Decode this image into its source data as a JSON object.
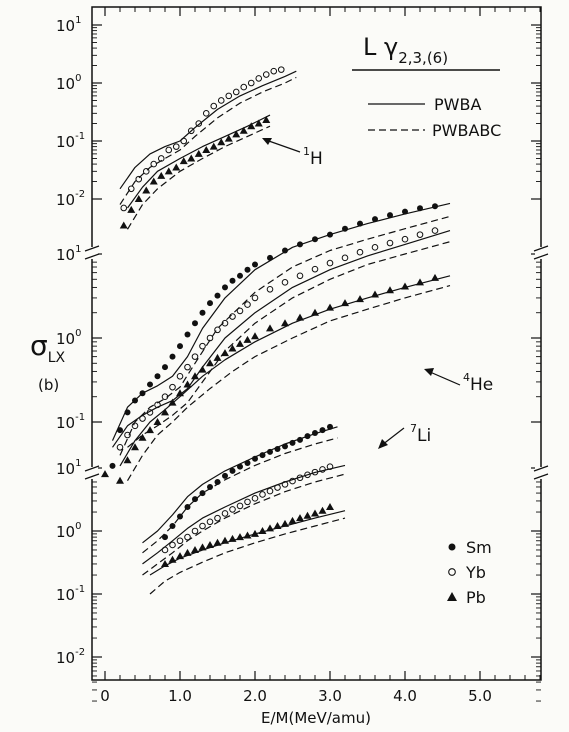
{
  "chart_data": {
    "type": "line",
    "xlabel": "E/M(MeV/amu)",
    "ylabel": "σ_LX",
    "ylabel_main": "σ",
    "ylabel_sub": "LX",
    "yunit": "(b)",
    "xlim": [
      0,
      6
    ],
    "x_ticks": [
      "0",
      "1.0",
      "2.0",
      "3.0",
      "4.0",
      "5.0"
    ],
    "yscale": "log",
    "title_main": "L γ",
    "title_sub": "2,3,(6)",
    "legend": {
      "line_solid": "PWBA",
      "line_dashed": "PWBABC",
      "markers": [
        {
          "symbol": "filled-circle",
          "label": "Sm"
        },
        {
          "symbol": "open-circle",
          "label": "Yb"
        },
        {
          "symbol": "filled-triangle",
          "label": "Pb"
        }
      ]
    },
    "panels": [
      {
        "name": "1H",
        "label": "1",
        "label_tail": "H",
        "y_ticks": [
          "10",
          "10",
          "10",
          "10"
        ],
        "y_exps": [
          "1",
          "0",
          "-1",
          "-2"
        ],
        "ylim_log": [
          -2.5,
          1
        ],
        "series": [
          {
            "marker": "open-circle",
            "x": [
              0.25,
              0.35,
              0.45,
              0.55,
              0.65,
              0.75,
              0.85,
              0.95,
              1.05,
              1.15,
              1.25,
              1.35,
              1.45,
              1.55,
              1.65,
              1.75,
              1.85,
              1.95,
              2.05,
              2.15,
              2.25,
              2.35
            ],
            "y": [
              0.007,
              0.015,
              0.022,
              0.03,
              0.04,
              0.05,
              0.07,
              0.08,
              0.1,
              0.15,
              0.2,
              0.3,
              0.4,
              0.5,
              0.6,
              0.7,
              0.85,
              1.0,
              1.2,
              1.4,
              1.6,
              1.7
            ]
          },
          {
            "marker": "filled-triangle",
            "x": [
              0.25,
              0.35,
              0.45,
              0.55,
              0.65,
              0.75,
              0.85,
              0.95,
              1.05,
              1.15,
              1.25,
              1.35,
              1.45,
              1.55,
              1.65,
              1.75,
              1.85,
              1.95,
              2.05,
              2.15
            ],
            "y": [
              0.0035,
              0.0065,
              0.01,
              0.014,
              0.02,
              0.025,
              0.03,
              0.035,
              0.045,
              0.05,
              0.06,
              0.07,
              0.08,
              0.095,
              0.11,
              0.13,
              0.15,
              0.18,
              0.2,
              0.23
            ]
          },
          {
            "line": "solid",
            "x": [
              0.2,
              0.4,
              0.6,
              0.8,
              1.0,
              1.2,
              1.5,
              1.8,
              2.1,
              2.4,
              2.55
            ],
            "y": [
              0.015,
              0.035,
              0.06,
              0.08,
              0.1,
              0.17,
              0.35,
              0.6,
              0.9,
              1.3,
              1.6
            ]
          },
          {
            "line": "dashed",
            "x": [
              0.2,
              0.4,
              0.6,
              0.8,
              1.0,
              1.2,
              1.5,
              1.8,
              2.1,
              2.4,
              2.55
            ],
            "y": [
              0.008,
              0.02,
              0.035,
              0.05,
              0.07,
              0.12,
              0.25,
              0.45,
              0.7,
              1.0,
              1.25
            ]
          },
          {
            "line": "solid",
            "x": [
              0.3,
              0.5,
              0.7,
              1.0,
              1.3,
              1.6,
              1.9,
              2.2
            ],
            "y": [
              0.007,
              0.016,
              0.03,
              0.05,
              0.08,
              0.12,
              0.18,
              0.28
            ]
          },
          {
            "line": "dashed",
            "x": [
              0.3,
              0.5,
              0.7,
              1.0,
              1.3,
              1.6,
              1.9,
              2.2
            ],
            "y": [
              0.003,
              0.008,
              0.015,
              0.03,
              0.05,
              0.08,
              0.12,
              0.18
            ]
          }
        ]
      },
      {
        "name": "4He",
        "label": "4",
        "label_tail": "He",
        "y_ticks": [
          "10",
          "10",
          "10"
        ],
        "y_exps": [
          "1",
          "0",
          "-1"
        ],
        "ylim_log": [
          -1.5,
          1.4
        ],
        "series": [
          {
            "marker": "filled-circle",
            "x": [
              0.1,
              0.2,
              0.3,
              0.4,
              0.5,
              0.6,
              0.7,
              0.8,
              0.9,
              1.0,
              1.1,
              1.2,
              1.3,
              1.4,
              1.5,
              1.6,
              1.7,
              1.8,
              1.9,
              2.0,
              2.2,
              2.4,
              2.6,
              2.8,
              3.0,
              3.2,
              3.4,
              3.6,
              3.8,
              4.0,
              4.2,
              4.4
            ],
            "y": [
              0.03,
              0.08,
              0.13,
              0.18,
              0.22,
              0.28,
              0.35,
              0.45,
              0.6,
              0.8,
              1.1,
              1.5,
              2.0,
              2.6,
              3.2,
              4.0,
              4.8,
              5.5,
              6.5,
              7.5,
              9,
              11,
              13,
              15,
              17,
              20,
              23,
              26,
              29,
              32,
              35,
              37
            ]
          },
          {
            "marker": "open-circle",
            "x": [
              0.2,
              0.3,
              0.4,
              0.5,
              0.6,
              0.7,
              0.8,
              0.9,
              1.0,
              1.1,
              1.2,
              1.3,
              1.4,
              1.5,
              1.6,
              1.7,
              1.8,
              1.9,
              2.0,
              2.2,
              2.4,
              2.6,
              2.8,
              3.0,
              3.2,
              3.4,
              3.6,
              3.8,
              4.0,
              4.2,
              4.4
            ],
            "y": [
              0.05,
              0.07,
              0.09,
              0.11,
              0.13,
              0.16,
              0.2,
              0.26,
              0.35,
              0.45,
              0.6,
              0.8,
              1.0,
              1.25,
              1.5,
              1.8,
              2.1,
              2.5,
              3.0,
              3.8,
              4.6,
              5.5,
              6.6,
              7.8,
              9,
              10.5,
              12,
              13.5,
              15,
              17,
              19
            ]
          },
          {
            "marker": "filled-triangle",
            "x": [
              0.2,
              0.3,
              0.4,
              0.5,
              0.6,
              0.7,
              0.8,
              0.9,
              1.0,
              1.1,
              1.2,
              1.3,
              1.4,
              1.5,
              1.6,
              1.7,
              1.8,
              1.9,
              2.0,
              2.2,
              2.4,
              2.6,
              2.8,
              3.0,
              3.2,
              3.4,
              3.6,
              3.8,
              4.0,
              4.2,
              4.4
            ],
            "y": [
              0.02,
              0.035,
              0.05,
              0.065,
              0.08,
              0.1,
              0.13,
              0.17,
              0.22,
              0.28,
              0.35,
              0.42,
              0.5,
              0.58,
              0.66,
              0.75,
              0.85,
              0.95,
              1.05,
              1.3,
              1.5,
              1.75,
              2.0,
              2.3,
              2.6,
              2.9,
              3.3,
              3.7,
              4.1,
              4.6,
              5.2
            ]
          },
          {
            "line": "solid",
            "x": [
              0.1,
              0.3,
              0.5,
              0.7,
              0.9,
              1.1,
              1.3,
              1.6,
              2.0,
              2.5,
              3.0,
              3.5,
              4.0,
              4.6
            ],
            "y": [
              0.06,
              0.15,
              0.22,
              0.27,
              0.35,
              0.6,
              1.3,
              3.0,
              6.5,
              12,
              17,
              23,
              30,
              40
            ]
          },
          {
            "line": "dashed",
            "x": [
              0.2,
              0.4,
              0.6,
              0.8,
              1.0,
              1.2,
              1.5,
              2.0,
              2.5,
              3.0,
              3.5,
              4.0,
              4.6
            ],
            "y": [
              0.04,
              0.1,
              0.15,
              0.19,
              0.26,
              0.5,
              1.3,
              3.5,
              7,
              11,
              15,
              20,
              28
            ]
          },
          {
            "line": "solid",
            "x": [
              0.1,
              0.3,
              0.5,
              0.7,
              0.9,
              1.1,
              1.3,
              1.6,
              2.0,
              2.5,
              3.0,
              3.5,
              4.0,
              4.6
            ],
            "y": [
              0.05,
              0.09,
              0.12,
              0.15,
              0.18,
              0.25,
              0.45,
              1.0,
              2.0,
              4.0,
              6.5,
              9.5,
              13,
              19
            ]
          },
          {
            "line": "dashed",
            "x": [
              0.3,
              0.5,
              0.7,
              0.9,
              1.1,
              1.3,
              1.6,
              2.0,
              2.5,
              3.0,
              3.5,
              4.0,
              4.6
            ],
            "y": [
              0.05,
              0.07,
              0.09,
              0.12,
              0.17,
              0.3,
              0.7,
              1.5,
              3.0,
              5.0,
              7.5,
              10,
              14
            ]
          },
          {
            "line": "solid",
            "x": [
              0.2,
              0.4,
              0.6,
              0.8,
              1.0,
              1.3,
              1.6,
              2.0,
              2.5,
              3.0,
              3.5,
              4.0,
              4.6
            ],
            "y": [
              0.03,
              0.06,
              0.1,
              0.14,
              0.2,
              0.35,
              0.55,
              0.9,
              1.5,
              2.2,
              3.0,
              4.0,
              5.5
            ]
          },
          {
            "line": "dashed",
            "x": [
              0.3,
              0.5,
              0.7,
              0.9,
              1.1,
              1.4,
              1.7,
              2.0,
              2.5,
              3.0,
              3.5,
              4.0,
              4.6
            ],
            "y": [
              0.02,
              0.04,
              0.07,
              0.1,
              0.15,
              0.25,
              0.4,
              0.6,
              1.0,
              1.6,
              2.2,
              3.0,
              4.2
            ]
          }
        ]
      },
      {
        "name": "7Li",
        "label": "7",
        "label_tail": "Li",
        "y_ticks": [
          "10",
          "10",
          "10",
          "10"
        ],
        "y_exps": [
          "1",
          "0",
          "-1",
          "-2"
        ],
        "ylim_log": [
          -2.2,
          1.1
        ],
        "series": [
          {
            "marker": "filled-circle",
            "x": [
              0.8,
              0.9,
              1.0,
              1.1,
              1.2,
              1.3,
              1.4,
              1.5,
              1.6,
              1.7,
              1.8,
              1.9,
              2.0,
              2.1,
              2.2,
              2.3,
              2.4,
              2.5,
              2.6,
              2.7,
              2.8,
              2.9,
              3.0
            ],
            "y": [
              0.8,
              1.2,
              1.7,
              2.4,
              3.2,
              4.0,
              5.0,
              6.0,
              7.5,
              9,
              10.5,
              12,
              14,
              16,
              18,
              20,
              22,
              25,
              28,
              32,
              36,
              40,
              45
            ]
          },
          {
            "marker": "open-circle",
            "x": [
              0.8,
              0.9,
              1.0,
              1.1,
              1.2,
              1.3,
              1.4,
              1.5,
              1.6,
              1.7,
              1.8,
              1.9,
              2.0,
              2.1,
              2.2,
              2.3,
              2.4,
              2.5,
              2.6,
              2.7,
              2.8,
              2.9,
              3.0
            ],
            "y": [
              0.5,
              0.6,
              0.7,
              0.8,
              1.0,
              1.2,
              1.4,
              1.6,
              1.9,
              2.2,
              2.5,
              2.9,
              3.3,
              3.8,
              4.3,
              4.9,
              5.5,
              6.2,
              7.0,
              7.8,
              8.6,
              9.5,
              10.5
            ]
          },
          {
            "marker": "filled-triangle",
            "x": [
              0.0,
              0.8,
              0.9,
              1.0,
              1.1,
              1.2,
              1.3,
              1.4,
              1.5,
              1.6,
              1.7,
              1.8,
              1.9,
              2.0,
              2.1,
              2.2,
              2.3,
              2.4,
              2.5,
              2.6,
              2.7,
              2.8,
              2.9,
              3.0
            ],
            "y": [
              8,
              0.3,
              0.35,
              0.4,
              0.45,
              0.5,
              0.55,
              0.6,
              0.65,
              0.7,
              0.75,
              0.8,
              0.85,
              0.9,
              1.0,
              1.1,
              1.2,
              1.3,
              1.45,
              1.6,
              1.75,
              1.9,
              2.1,
              2.4
            ]
          },
          {
            "line": "solid",
            "x": [
              0.5,
              0.7,
              0.9,
              1.1,
              1.3,
              1.6,
              2.0,
              2.4,
              2.8,
              3.1
            ],
            "y": [
              0.65,
              1.0,
              1.8,
              3.5,
              5.5,
              9,
              15,
              24,
              35,
              45
            ]
          },
          {
            "line": "dashed",
            "x": [
              0.5,
              0.7,
              0.9,
              1.1,
              1.3,
              1.6,
              2.0,
              2.4,
              2.8,
              3.1
            ],
            "y": [
              0.45,
              0.7,
              1.2,
              2.4,
              4.0,
              6.5,
              11,
              17,
              24,
              30
            ]
          },
          {
            "line": "solid",
            "x": [
              0.5,
              0.7,
              0.9,
              1.1,
              1.3,
              1.6,
              2.0,
              2.4,
              2.8,
              3.2
            ],
            "y": [
              0.3,
              0.45,
              0.7,
              1.1,
              1.6,
              2.4,
              4.0,
              6.0,
              8.5,
              11
            ]
          },
          {
            "line": "dashed",
            "x": [
              0.5,
              0.7,
              0.9,
              1.1,
              1.3,
              1.6,
              2.0,
              2.4,
              2.8,
              3.2
            ],
            "y": [
              0.2,
              0.3,
              0.45,
              0.7,
              1.0,
              1.6,
              2.7,
              4.2,
              6.0,
              8
            ]
          },
          {
            "line": "solid",
            "x": [
              0.6,
              0.8,
              1.0,
              1.3,
              1.6,
              2.0,
              2.4,
              2.8,
              3.2
            ],
            "y": [
              0.2,
              0.28,
              0.37,
              0.5,
              0.65,
              0.9,
              1.2,
              1.6,
              2.1
            ]
          },
          {
            "line": "dashed",
            "x": [
              0.6,
              0.8,
              1.0,
              1.3,
              1.6,
              2.0,
              2.4,
              2.8,
              3.2
            ],
            "y": [
              0.1,
              0.16,
              0.22,
              0.32,
              0.45,
              0.65,
              0.9,
              1.2,
              1.6
            ]
          }
        ]
      }
    ]
  }
}
